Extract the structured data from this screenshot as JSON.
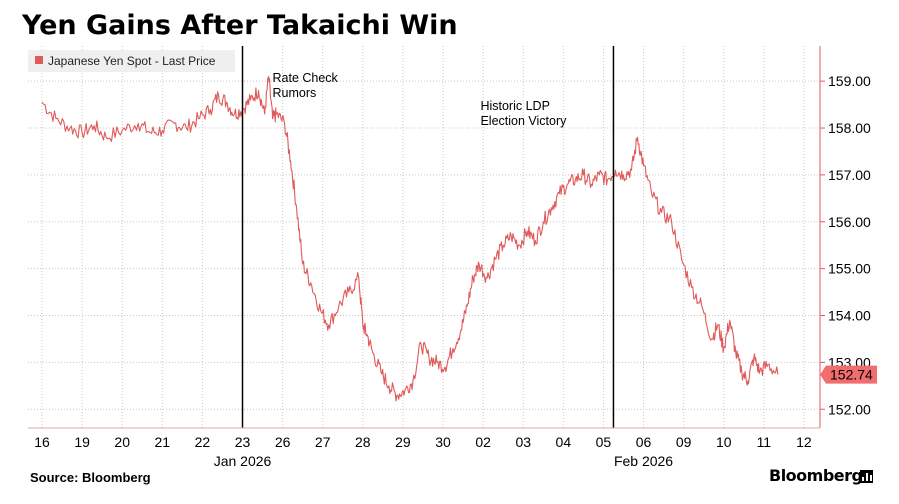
{
  "header": {
    "title": "Yen Gains After Takaichi Win"
  },
  "footer": {
    "source": "Source: Bloomberg",
    "brand": "Bloomberg"
  },
  "colors": {
    "series": "#e05a5a",
    "last_price_tag": "#f26d6d",
    "grid": "#c8c8c8",
    "axis": "#e05a5a"
  },
  "chart_data": {
    "type": "line",
    "title": "Yen Gains After Takaichi Win",
    "legend": {
      "entry": "Japanese Yen Spot - Last Price",
      "placement": "top-left"
    },
    "series": [
      {
        "name": "Japanese Yen Spot - Last Price",
        "points": [
          [
            0,
            158.55
          ],
          [
            0.35,
            158.2
          ],
          [
            0.7,
            158.0
          ],
          [
            1.0,
            157.9
          ],
          [
            1.3,
            158.05
          ],
          [
            1.6,
            157.8
          ],
          [
            2.0,
            157.95
          ],
          [
            2.4,
            158.1
          ],
          [
            2.7,
            157.9
          ],
          [
            3.0,
            157.95
          ],
          [
            3.3,
            158.1
          ],
          [
            3.6,
            158.0
          ],
          [
            3.9,
            158.2
          ],
          [
            4.2,
            158.4
          ],
          [
            4.4,
            158.7
          ],
          [
            4.6,
            158.55
          ],
          [
            4.8,
            158.3
          ],
          [
            5.0,
            158.4
          ],
          [
            5.2,
            158.6
          ],
          [
            5.4,
            158.8
          ],
          [
            5.55,
            158.3
          ],
          [
            5.65,
            159.1
          ],
          [
            5.75,
            158.2
          ],
          [
            5.85,
            158.3
          ],
          [
            6.05,
            158.1
          ],
          [
            6.2,
            157.3
          ],
          [
            6.35,
            156.3
          ],
          [
            6.5,
            155.1
          ],
          [
            6.7,
            154.7
          ],
          [
            6.95,
            154.1
          ],
          [
            7.15,
            153.8
          ],
          [
            7.4,
            154.2
          ],
          [
            7.65,
            154.5
          ],
          [
            7.9,
            154.8
          ],
          [
            8.0,
            153.8
          ],
          [
            8.1,
            153.6
          ],
          [
            8.25,
            153.2
          ],
          [
            8.45,
            152.8
          ],
          [
            8.65,
            152.5
          ],
          [
            8.85,
            152.3
          ],
          [
            9.05,
            152.4
          ],
          [
            9.25,
            152.6
          ],
          [
            9.45,
            153.4
          ],
          [
            9.65,
            153.1
          ],
          [
            9.85,
            153.0
          ],
          [
            10.05,
            152.9
          ],
          [
            10.25,
            153.3
          ],
          [
            10.45,
            153.7
          ],
          [
            10.6,
            154.2
          ],
          [
            10.75,
            154.8
          ],
          [
            10.9,
            155.1
          ],
          [
            11.1,
            154.8
          ],
          [
            11.3,
            155.2
          ],
          [
            11.5,
            155.5
          ],
          [
            11.7,
            155.7
          ],
          [
            11.9,
            155.5
          ],
          [
            12.1,
            155.8
          ],
          [
            12.3,
            155.6
          ],
          [
            12.5,
            156.0
          ],
          [
            12.7,
            156.3
          ],
          [
            12.9,
            156.6
          ],
          [
            13.1,
            156.8
          ],
          [
            13.3,
            156.9
          ],
          [
            13.5,
            157.0
          ],
          [
            13.7,
            156.8
          ],
          [
            13.9,
            157.0
          ],
          [
            14.1,
            156.9
          ],
          [
            14.3,
            157.1
          ],
          [
            14.5,
            157.0
          ],
          [
            14.7,
            157.1
          ],
          [
            14.85,
            157.8
          ],
          [
            15.0,
            157.2
          ],
          [
            15.2,
            156.6
          ],
          [
            15.45,
            156.2
          ],
          [
            15.7,
            156.0
          ],
          [
            15.95,
            155.2
          ],
          [
            16.2,
            154.6
          ],
          [
            16.45,
            154.2
          ],
          [
            16.7,
            153.5
          ],
          [
            16.85,
            153.8
          ],
          [
            17.0,
            153.3
          ],
          [
            17.15,
            153.9
          ],
          [
            17.3,
            153.2
          ],
          [
            17.45,
            152.8
          ],
          [
            17.6,
            152.6
          ],
          [
            17.75,
            153.1
          ],
          [
            17.9,
            152.8
          ],
          [
            18.1,
            152.95
          ],
          [
            18.35,
            152.74
          ]
        ]
      }
    ],
    "x_tick_labels": [
      "16",
      "19",
      "20",
      "21",
      "22",
      "23",
      "26",
      "27",
      "28",
      "29",
      "30",
      "02",
      "03",
      "04",
      "05",
      "06",
      "09",
      "10",
      "11",
      "12"
    ],
    "x_month_labels": [
      {
        "label": "Jan 2026",
        "at": 5
      },
      {
        "label": "Feb 2026",
        "at": 15
      }
    ],
    "yaxis": {
      "position": "right",
      "ylim": [
        151.6,
        159.75
      ],
      "ticks": [
        "152.00",
        "153.00",
        "154.00",
        "155.00",
        "156.00",
        "157.00",
        "158.00",
        "159.00"
      ]
    },
    "last_price": "152.74",
    "annotations": [
      {
        "text_lines": [
          "Rate Check",
          "Rumors"
        ],
        "at": 5.55
      },
      {
        "text_lines": [
          "Historic LDP",
          "Election Victory"
        ],
        "at": 14.8
      }
    ],
    "grid": {
      "horizontal": true,
      "vertical": true,
      "style": "dotted"
    }
  }
}
